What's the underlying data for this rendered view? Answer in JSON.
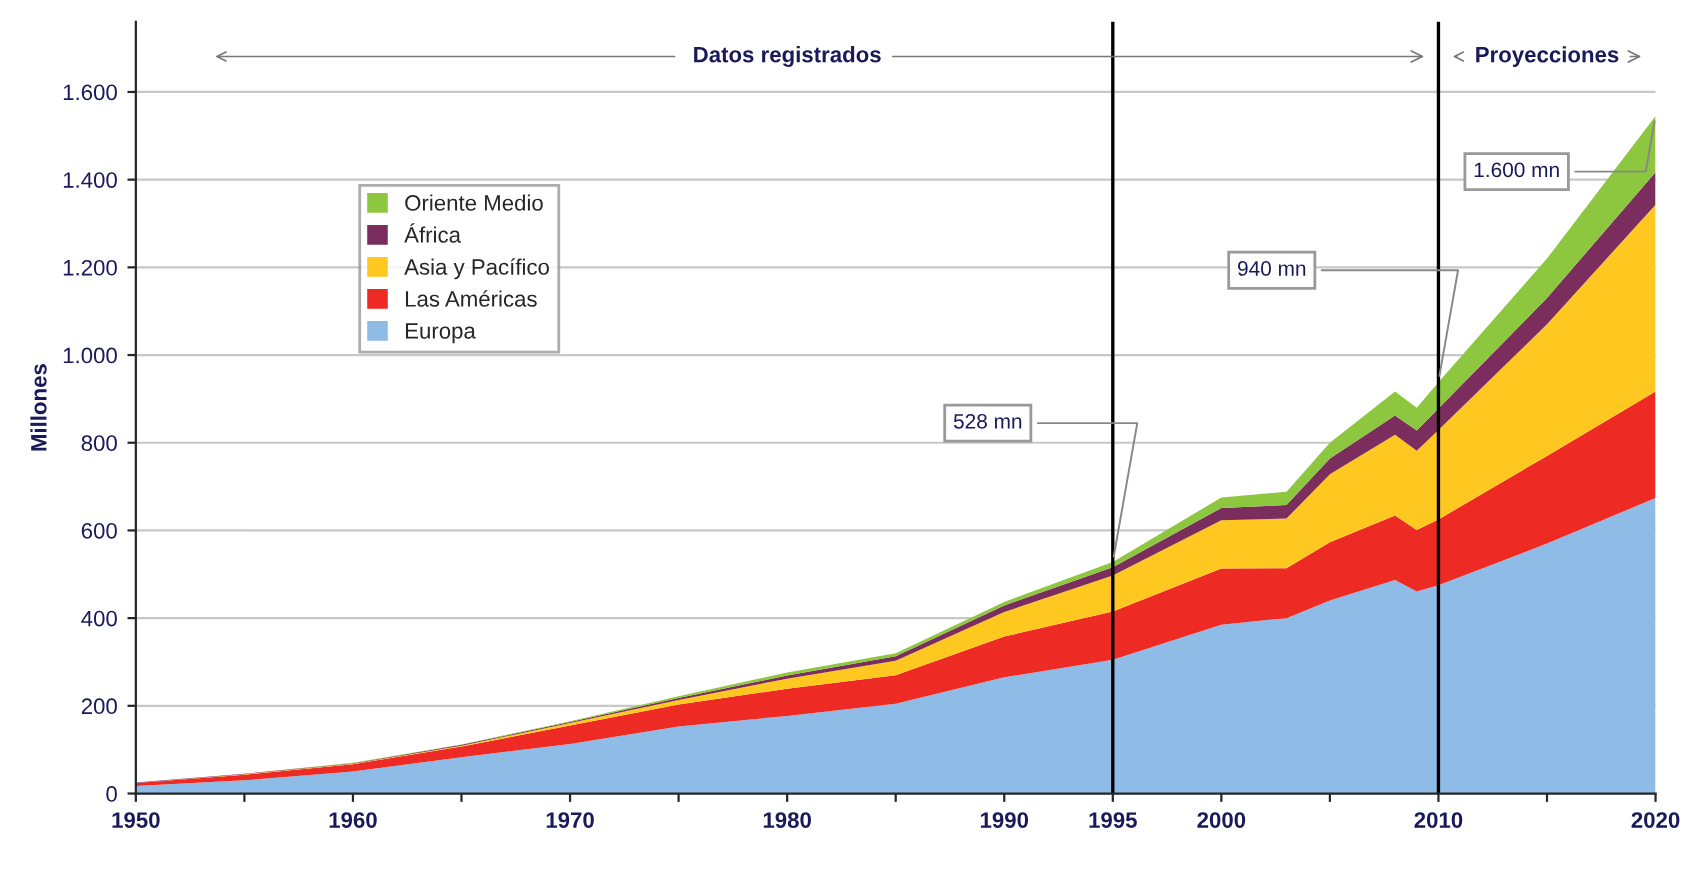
{
  "chart_data": {
    "type": "area",
    "stacked": true,
    "ylabel": "Millones",
    "x": [
      1950,
      1955,
      1960,
      1965,
      1970,
      1975,
      1980,
      1985,
      1990,
      1995,
      2000,
      2003,
      2005,
      2008,
      2009,
      2010,
      2015,
      2020
    ],
    "series": [
      {
        "name": "Europa",
        "color": "#8fbce6",
        "values": [
          17,
          30,
          50,
          83,
          113,
          153,
          177,
          205,
          265,
          305,
          385,
          400,
          440,
          487,
          461,
          475,
          570,
          674
        ]
      },
      {
        "name": "Las Américas",
        "color": "#ee2a24",
        "values": [
          7,
          13,
          17,
          24,
          42,
          50,
          62,
          65,
          93,
          110,
          128,
          114,
          133,
          147,
          140,
          150,
          200,
          243
        ]
      },
      {
        "name": "Asia y Pacífico",
        "color": "#ffc820",
        "values": [
          0,
          1,
          1,
          2,
          6,
          10,
          23,
          33,
          56,
          82,
          110,
          113,
          155,
          184,
          181,
          204,
          300,
          426
        ]
      },
      {
        "name": "África",
        "color": "#7b2d5e",
        "values": [
          1,
          1,
          1,
          2,
          2,
          5,
          7,
          10,
          15,
          19,
          28,
          31,
          36,
          44,
          46,
          49,
          60,
          74
        ]
      },
      {
        "name": "Oriente Medio",
        "color": "#8dc63f",
        "values": [
          0,
          0,
          1,
          1,
          2,
          4,
          7,
          7,
          8,
          12,
          24,
          30,
          36,
          55,
          52,
          60,
          90,
          128
        ]
      }
    ],
    "xlim": [
      1950,
      2020
    ],
    "xticks": [
      1950,
      {
        "value": 1955,
        "label": null
      },
      1960,
      {
        "value": 1965,
        "label": null
      },
      1970,
      {
        "value": 1975,
        "label": null
      },
      1980,
      {
        "value": 1985,
        "label": null
      },
      1990,
      1995,
      2000,
      {
        "value": 2005,
        "label": null
      },
      2010,
      {
        "value": 2015,
        "label": null
      },
      2020
    ],
    "ylim": [
      0,
      1760
    ],
    "yticks": [
      0,
      200,
      400,
      600,
      800,
      {
        "value": 1000,
        "label": "1.000"
      },
      {
        "value": 1200,
        "label": "1.200"
      },
      {
        "value": 1400,
        "label": "1.400"
      },
      {
        "value": 1600,
        "label": "1.600"
      }
    ],
    "grid": "y",
    "legend": "left",
    "ref_lines": [
      {
        "axis": "x",
        "value": 1995,
        "color": "#000000"
      },
      {
        "axis": "x",
        "value": 2010,
        "color": "#000000"
      }
    ],
    "annotations": [
      "Datos registrados",
      "Proyecciones",
      {
        "text": "528 mn",
        "x": 1995,
        "y": 528
      },
      {
        "text": "940 mn",
        "x": 2010,
        "y": 940
      },
      {
        "text": "1.600 mn",
        "x": 2020,
        "y": 1545
      }
    ]
  }
}
